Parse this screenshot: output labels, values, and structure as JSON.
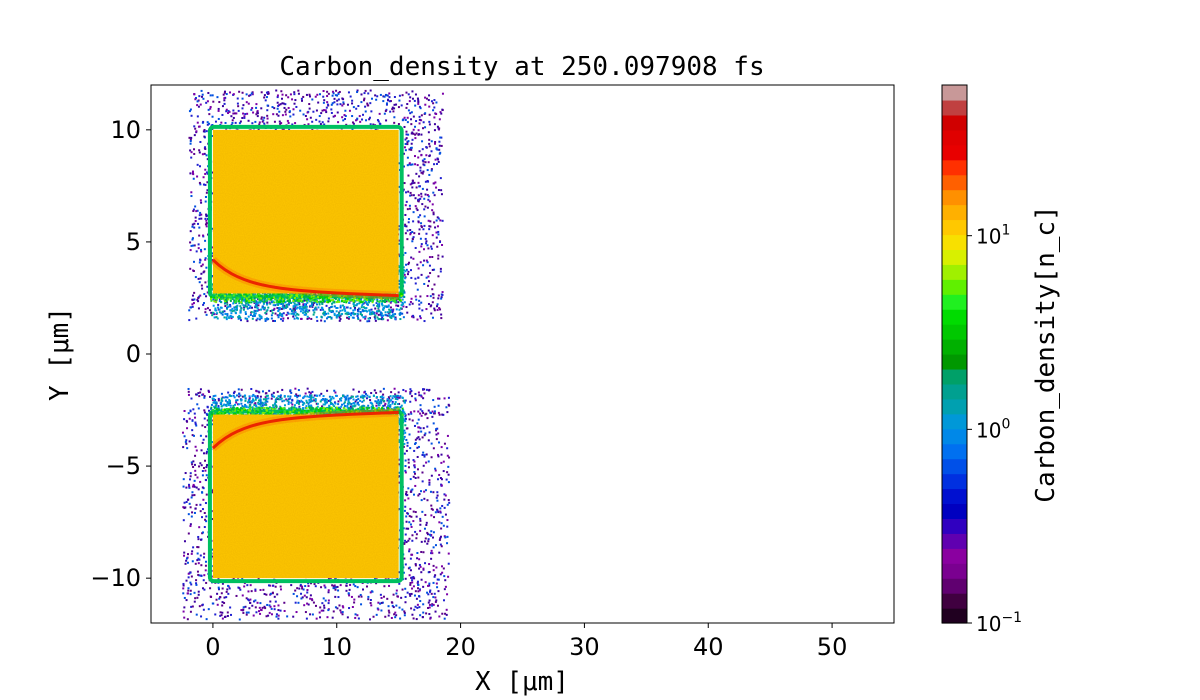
{
  "chart_data": {
    "type": "heatmap",
    "title": "Carbon_density at 250.097908 fs",
    "xlabel": "X [μm]",
    "ylabel": "Y [μm]",
    "xlim": [
      -5,
      55
    ],
    "ylim": [
      -12,
      12
    ],
    "xticks": [
      0,
      10,
      20,
      30,
      40,
      50
    ],
    "yticks": [
      10,
      5,
      0,
      -5,
      -10
    ],
    "xtick_labels": [
      "0",
      "10",
      "20",
      "30",
      "40",
      "50"
    ],
    "ytick_labels": [
      "10",
      "5",
      "0",
      "−5",
      "−10"
    ],
    "colorbar": {
      "label": "Carbon_density[n_c]",
      "scale": "log",
      "range": [
        0.1,
        60
      ],
      "ticks": [
        0.1,
        1,
        10
      ],
      "tick_labels": [
        "10^-1",
        "10^0",
        "10^1"
      ]
    },
    "regions": [
      {
        "name": "upper-slab",
        "x": [
          0,
          15
        ],
        "y": [
          2.7,
          10
        ],
        "density": 15
      },
      {
        "name": "lower-slab",
        "x": [
          0,
          15
        ],
        "y": [
          -10,
          -2.7
        ],
        "density": 15
      }
    ]
  }
}
